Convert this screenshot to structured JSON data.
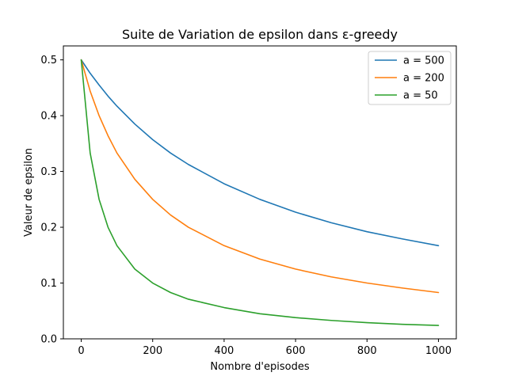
{
  "chart_data": {
    "type": "line",
    "title": "Suite de Variation de epsilon dans ε-greedy",
    "xlabel": "Nombre d'episodes",
    "ylabel": "Valeur de epsilon",
    "xlim": [
      -50,
      1050
    ],
    "ylim": [
      0,
      0.525
    ],
    "xticks": [
      0,
      200,
      400,
      600,
      800,
      1000
    ],
    "yticks": [
      0.0,
      0.1,
      0.2,
      0.3,
      0.4,
      0.5
    ],
    "xtick_labels": [
      "0",
      "200",
      "400",
      "600",
      "800",
      "1000"
    ],
    "ytick_labels": [
      "0.0",
      "0.1",
      "0.2",
      "0.3",
      "0.4",
      "0.5"
    ],
    "grid": false,
    "legend_position": "top-right",
    "x": [
      0,
      25,
      50,
      75,
      100,
      150,
      200,
      250,
      300,
      400,
      500,
      600,
      700,
      800,
      900,
      1000
    ],
    "series": [
      {
        "name": "a = 500",
        "color": "#1f77b4",
        "values": [
          0.5,
          0.476,
          0.455,
          0.435,
          0.417,
          0.385,
          0.357,
          0.333,
          0.3125,
          0.278,
          0.25,
          0.227,
          0.208,
          0.192,
          0.179,
          0.167
        ]
      },
      {
        "name": "a = 200",
        "color": "#ff7f0e",
        "values": [
          0.5,
          0.444,
          0.4,
          0.364,
          0.333,
          0.286,
          0.25,
          0.222,
          0.2,
          0.167,
          0.143,
          0.125,
          0.111,
          0.1,
          0.091,
          0.083
        ]
      },
      {
        "name": "a = 50",
        "color": "#2ca02c",
        "values": [
          0.5,
          0.333,
          0.25,
          0.2,
          0.167,
          0.125,
          0.1,
          0.083,
          0.071,
          0.056,
          0.045,
          0.038,
          0.033,
          0.029,
          0.026,
          0.024
        ]
      }
    ]
  }
}
